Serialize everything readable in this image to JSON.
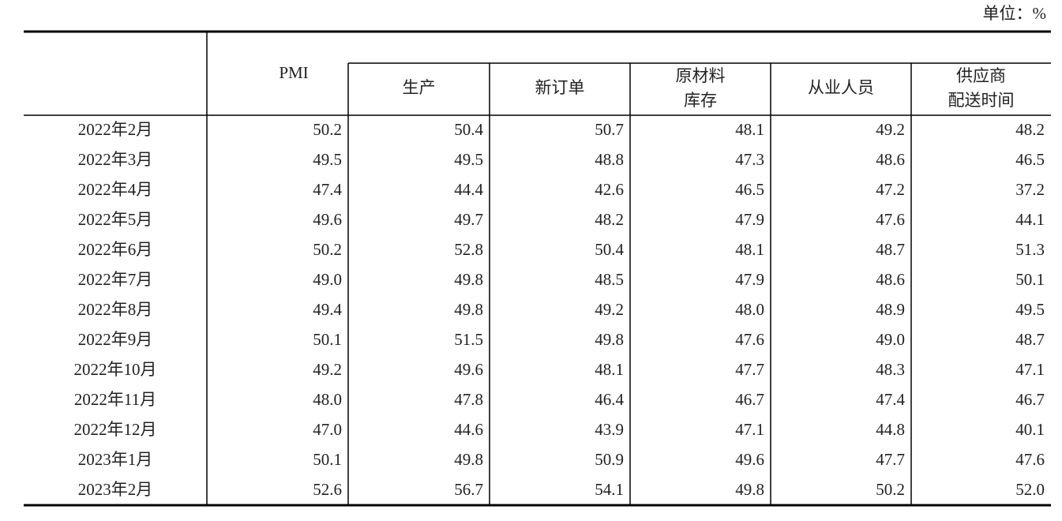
{
  "unit": "单位：%",
  "header": {
    "pmi": "PMI",
    "sub_columns": [
      [
        "生产"
      ],
      [
        "新订单"
      ],
      [
        "原材料",
        "库存"
      ],
      [
        "从业人员"
      ],
      [
        "供应商",
        "配送时间"
      ]
    ]
  },
  "table": {
    "rows": [
      [
        "2022年2月",
        "50.2",
        "50.4",
        "50.7",
        "48.1",
        "49.2",
        "48.2"
      ],
      [
        "2022年3月",
        "49.5",
        "49.5",
        "48.8",
        "47.3",
        "48.6",
        "46.5"
      ],
      [
        "2022年4月",
        "47.4",
        "44.4",
        "42.6",
        "46.5",
        "47.2",
        "37.2"
      ],
      [
        "2022年5月",
        "49.6",
        "49.7",
        "48.2",
        "47.9",
        "47.6",
        "44.1"
      ],
      [
        "2022年6月",
        "50.2",
        "52.8",
        "50.4",
        "48.1",
        "48.7",
        "51.3"
      ],
      [
        "2022年7月",
        "49.0",
        "49.8",
        "48.5",
        "47.9",
        "48.6",
        "50.1"
      ],
      [
        "2022年8月",
        "49.4",
        "49.8",
        "49.2",
        "48.0",
        "48.9",
        "49.5"
      ],
      [
        "2022年9月",
        "50.1",
        "51.5",
        "49.8",
        "47.6",
        "49.0",
        "48.7"
      ],
      [
        "2022年10月",
        "49.2",
        "49.6",
        "48.1",
        "47.7",
        "48.3",
        "47.1"
      ],
      [
        "2022年11月",
        "48.0",
        "47.8",
        "46.4",
        "46.7",
        "47.4",
        "46.7"
      ],
      [
        "2022年12月",
        "47.0",
        "44.6",
        "43.9",
        "47.1",
        "44.8",
        "40.1"
      ],
      [
        "2023年1月",
        "50.1",
        "49.8",
        "50.9",
        "49.6",
        "47.7",
        "47.6"
      ],
      [
        "2023年2月",
        "52.6",
        "56.7",
        "54.1",
        "49.8",
        "50.2",
        "52.0"
      ]
    ]
  }
}
